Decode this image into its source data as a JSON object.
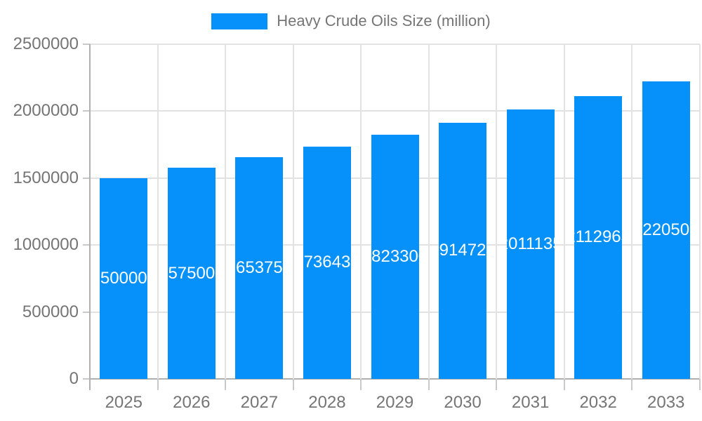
{
  "page": {
    "background_color": "#ffffff",
    "text_color": "#757575"
  },
  "legend": {
    "label": "Heavy Crude Oils Size (million)",
    "swatch_color": "#0590fa"
  },
  "chart_data": {
    "type": "bar",
    "title": "Heavy Crude Oils Size (million)",
    "categories": [
      "2025",
      "2026",
      "2027",
      "2028",
      "2029",
      "2030",
      "2031",
      "2032",
      "2033"
    ],
    "values": [
      1500000,
      1575000,
      1653750,
      1736437,
      1823300,
      1914725,
      2011135,
      2112965,
      2220505
    ],
    "bar_labels_visible": [
      "50000",
      "57500",
      "65375",
      "73643",
      "82330",
      "91472",
      "01113",
      "11296",
      "22050"
    ],
    "bar_label_note": "full value text centered in each bar, clipped by bar width",
    "y_ticks": [
      0,
      500000,
      1000000,
      1500000,
      2000000,
      2500000
    ],
    "ylim": [
      0,
      2500000
    ],
    "xlabel": "",
    "ylabel": "",
    "grid": true,
    "legend_position": "top-center",
    "bar_color": "#0590fa",
    "bar_label_color": "#ffffff",
    "axis_text_color": "#757575",
    "gridline_color": "#e2e2e2",
    "axis_line_color": "#b0b0b0"
  }
}
